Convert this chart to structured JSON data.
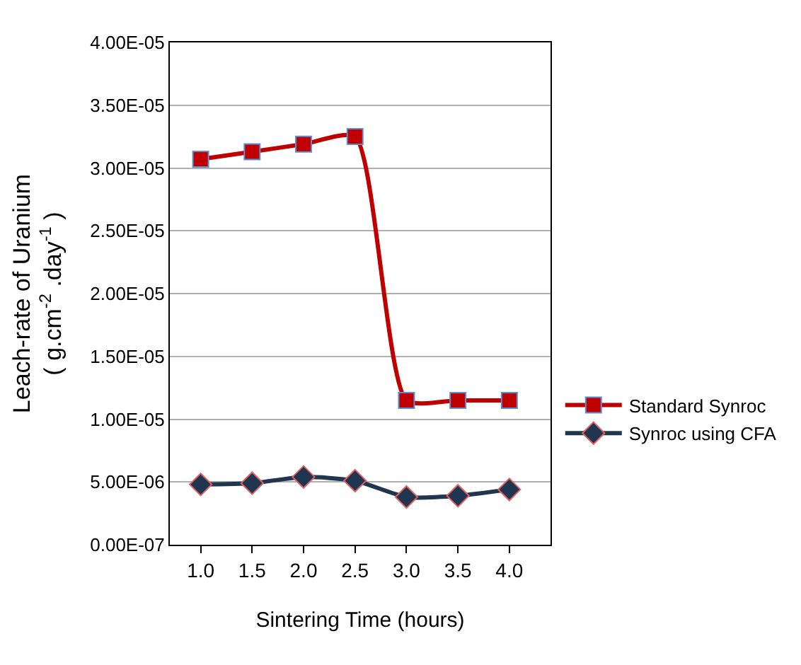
{
  "chart_data": {
    "type": "line",
    "xlabel": "Sintering Time (hours)",
    "ylabel": "Leach-rate of Uranium\n( g.cm$^{-2}$ .day$^{-1}$ )",
    "categories": [
      "1.0",
      "1.5",
      "2.0",
      "2.5",
      "3.0",
      "3.5",
      "4.0"
    ],
    "series": [
      {
        "name": "Standard Synroc",
        "color": "#c00000",
        "marker": "square",
        "values": [
          3.07e-05,
          3.13e-05,
          3.19e-05,
          3.25e-05,
          1.15e-05,
          1.15e-05,
          1.15e-05
        ]
      },
      {
        "name": "Synroc using CFA",
        "color": "#1f3550",
        "marker": "diamond",
        "values": [
          4.8e-06,
          4.9e-06,
          5.4e-06,
          5.1e-06,
          3.8e-06,
          3.9e-06,
          4.4e-06
        ]
      }
    ],
    "ylim": [
      0,
      4e-05
    ],
    "yticks": [
      {
        "value": 0,
        "label": "0.00E-07"
      },
      {
        "value": 5e-06,
        "label": "5.00E-06"
      },
      {
        "value": 1e-05,
        "label": "1.00E-05"
      },
      {
        "value": 1.5e-05,
        "label": "1.50E-05"
      },
      {
        "value": 2e-05,
        "label": "2.00E-05"
      },
      {
        "value": 2.5e-05,
        "label": "2.50E-05"
      },
      {
        "value": 3e-05,
        "label": "3.00E-05"
      },
      {
        "value": 3.5e-05,
        "label": "3.50E-05"
      },
      {
        "value": 4e-05,
        "label": "4.00E-05"
      }
    ],
    "grid": "y",
    "legend": "right",
    "line_style": "solid"
  }
}
